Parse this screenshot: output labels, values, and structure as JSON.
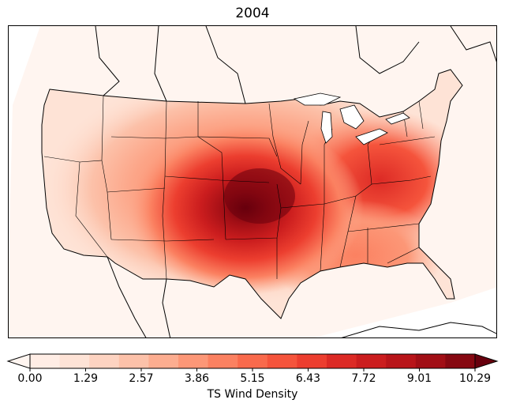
{
  "title": "2004",
  "colorbar": {
    "label": "TS Wind Density",
    "ticks": [
      "0.00",
      "1.29",
      "2.57",
      "3.86",
      "5.15",
      "6.43",
      "7.72",
      "9.01",
      "10.29"
    ],
    "colors": [
      "#fff5f0",
      "#ffede5",
      "#fee3d6",
      "#fdd3c1",
      "#fcc1a9",
      "#fcad90",
      "#fc9777",
      "#fb8161",
      "#f96a4c",
      "#f5543c",
      "#ec3e2f",
      "#dc2a25",
      "#cb1d1e",
      "#b81419",
      "#a10e15",
      "#860811",
      "#67000d"
    ]
  },
  "map": {
    "region": "Contiguous United States",
    "variable": "Tropical storm wind density",
    "year": "2004"
  }
}
